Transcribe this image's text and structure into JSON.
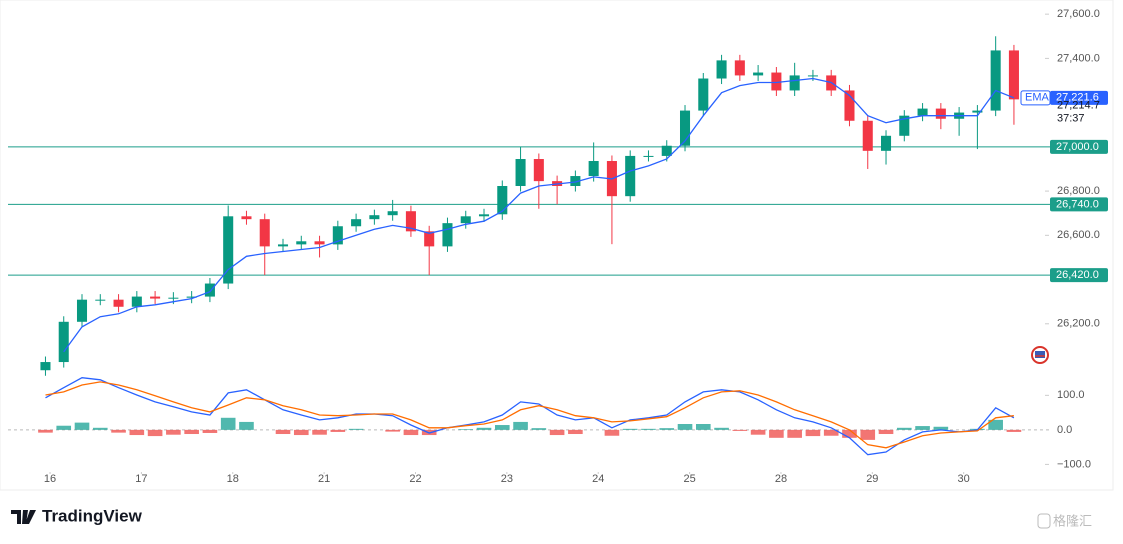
{
  "chart_data": [
    {
      "type": "candlestick",
      "x": [
        -0.05,
        0.15,
        0.35,
        0.55,
        0.75,
        0.95,
        1.15,
        1.35,
        1.55,
        1.75,
        1.95,
        2.15,
        2.35,
        2.55,
        2.75,
        2.95,
        3.15,
        3.35,
        3.55,
        3.75,
        3.95,
        4.15,
        4.35,
        4.55,
        4.75,
        4.95,
        5.15,
        5.35,
        5.55,
        5.75,
        5.95,
        6.15,
        6.35,
        6.55,
        6.75,
        6.95,
        7.15,
        7.35,
        7.55,
        7.75,
        7.95,
        8.15,
        8.35,
        8.55,
        8.75,
        8.95,
        9.15,
        9.35,
        9.55,
        9.75,
        9.95,
        10.15,
        10.35,
        10.55
      ],
      "open": [
        25990,
        26027,
        26209,
        26309,
        26309,
        26277,
        26323,
        26314,
        26318,
        26323,
        26382,
        26686,
        26673,
        26550,
        26559,
        26573,
        26559,
        26641,
        26673,
        26691,
        26709,
        26618,
        26550,
        26655,
        26686,
        26695,
        26823,
        26945,
        26845,
        26823,
        26868,
        26936,
        26777,
        26959,
        26959,
        27005,
        27164,
        27309,
        27391,
        27323,
        27336,
        27255,
        27323,
        27323,
        27255,
        27118,
        26982,
        27050,
        27141,
        27173,
        27127,
        27155,
        27164,
        27436
      ],
      "high": [
        26052,
        26234,
        26334,
        26334,
        26334,
        26348,
        26348,
        26343,
        26348,
        26407,
        26735,
        26711,
        26698,
        26584,
        26598,
        26598,
        26666,
        26698,
        26716,
        26760,
        26734,
        26643,
        26680,
        26711,
        26720,
        26848,
        27000,
        26970,
        26870,
        26893,
        27020,
        26961,
        26984,
        26984,
        27030,
        27189,
        27334,
        27416,
        27416,
        27370,
        27361,
        27380,
        27348,
        27348,
        27280,
        27143,
        27075,
        27166,
        27198,
        27198,
        27180,
        27189,
        27500,
        27461
      ],
      "low": [
        25965,
        26002,
        26184,
        26284,
        26252,
        26252,
        26289,
        26289,
        26293,
        26298,
        26357,
        26648,
        26420,
        26525,
        26534,
        26500,
        26534,
        26616,
        26648,
        26666,
        26593,
        26420,
        26525,
        26630,
        26661,
        26670,
        26798,
        26720,
        26740,
        26798,
        26843,
        26560,
        26752,
        26934,
        26934,
        26980,
        27139,
        27284,
        27298,
        27298,
        27230,
        27230,
        27298,
        27230,
        27093,
        26900,
        26920,
        27025,
        27116,
        27080,
        27050,
        26990,
        27139,
        27100
      ],
      "close": [
        26027,
        26209,
        26309,
        26309,
        26277,
        26323,
        26314,
        26318,
        26323,
        26382,
        26686,
        26673,
        26550,
        26559,
        26573,
        26559,
        26641,
        26673,
        26691,
        26709,
        26618,
        26550,
        26655,
        26686,
        26695,
        26823,
        26945,
        26845,
        26823,
        26868,
        26936,
        26777,
        26959,
        26959,
        27005,
        27164,
        27309,
        27391,
        27323,
        27336,
        27255,
        27323,
        27323,
        27255,
        27118,
        26982,
        27050,
        27141,
        27173,
        27127,
        27155,
        27164,
        27436,
        27214.7
      ],
      "up_color": "#089981",
      "down_color": "#f23645",
      "series": [
        {
          "name": "EMA",
          "color": "#2962ff",
          "last_label": "27,221.6",
          "values": [
            null,
            26073,
            26186,
            26232,
            26245,
            26277,
            26286,
            26300,
            26314,
            26345,
            26445,
            26505,
            26518,
            26527,
            26536,
            26545,
            26573,
            26600,
            26627,
            26645,
            26632,
            26609,
            26627,
            26650,
            26664,
            26709,
            26791,
            26823,
            26832,
            26841,
            26864,
            26855,
            26891,
            26914,
            26945,
            27027,
            27141,
            27245,
            27277,
            27291,
            27291,
            27300,
            27309,
            27291,
            27232,
            27141,
            27109,
            27127,
            27141,
            27141,
            27141,
            27141,
            27255,
            27221.6
          ]
        }
      ],
      "hlines": [
        {
          "value": 27000,
          "label": "27,000.0"
        },
        {
          "value": 26740,
          "label": "26,740.0"
        },
        {
          "value": 26420,
          "label": "26,420.0"
        }
      ],
      "hline_color": "#1b9e8a",
      "last_price_label": "27,214.7",
      "countdown": "37:37",
      "xlim": [
        -0.46,
        10.89
      ],
      "ylim": [
        25982,
        27664
      ],
      "yticks": [
        {
          "value": 27600,
          "label": "27,600.0"
        },
        {
          "value": 27400,
          "label": "27,400.0"
        },
        {
          "value": 26800,
          "label": "26,800.0"
        },
        {
          "value": 26600,
          "label": "26,600.0"
        },
        {
          "value": 26200,
          "label": "26,200.0"
        }
      ]
    },
    {
      "type": "macd",
      "x": [
        -0.05,
        0.15,
        0.35,
        0.55,
        0.75,
        0.95,
        1.15,
        1.35,
        1.55,
        1.75,
        1.95,
        2.15,
        2.35,
        2.55,
        2.75,
        2.95,
        3.15,
        3.35,
        3.55,
        3.75,
        3.95,
        4.15,
        4.35,
        4.55,
        4.75,
        4.95,
        5.15,
        5.35,
        5.55,
        5.75,
        5.95,
        6.15,
        6.35,
        6.55,
        6.75,
        6.95,
        7.15,
        7.35,
        7.55,
        7.75,
        7.95,
        8.15,
        8.35,
        8.55,
        8.75,
        8.95,
        9.15,
        9.35,
        9.55,
        9.75,
        9.95,
        10.15,
        10.35,
        10.55
      ],
      "series": [
        {
          "color": "#2962ff",
          "values": [
            93,
            122,
            151,
            145,
            122,
            101,
            81,
            67,
            52,
            43,
            107,
            116,
            87,
            58,
            43,
            29,
            35,
            46,
            46,
            41,
            14,
            -9,
            6,
            14,
            23,
            43,
            81,
            75,
            43,
            29,
            35,
            6,
            29,
            35,
            43,
            81,
            110,
            116,
            110,
            87,
            58,
            35,
            23,
            6,
            -23,
            -72,
            -64,
            -29,
            -6,
            0,
            -6,
            0,
            64,
            35
          ]
        },
        {
          "color": "#ff6d00",
          "values": [
            101,
            110,
            130,
            139,
            130,
            116,
            99,
            81,
            64,
            52,
            72,
            93,
            87,
            70,
            58,
            43,
            41,
            43,
            46,
            46,
            29,
            6,
            6,
            12,
            17,
            29,
            58,
            70,
            58,
            41,
            35,
            23,
            26,
            32,
            38,
            64,
            93,
            110,
            113,
            101,
            81,
            58,
            41,
            23,
            0,
            -43,
            -52,
            -35,
            -17,
            -9,
            -6,
            -3,
            35,
            41
          ]
        }
      ],
      "histogram": {
        "positive_color": "#26a69a",
        "negative_color": "#ef5350",
        "values": [
          -8,
          12,
          21,
          6,
          -8,
          -15,
          -18,
          -14,
          -12,
          -9,
          35,
          23,
          0,
          -12,
          -15,
          -14,
          -6,
          3,
          0,
          -5,
          -15,
          -15,
          0,
          2,
          6,
          14,
          23,
          5,
          -15,
          -12,
          0,
          -17,
          3,
          3,
          5,
          17,
          17,
          6,
          -3,
          -14,
          -23,
          -23,
          -18,
          -17,
          -23,
          -29,
          -12,
          6,
          11,
          9,
          0,
          3,
          29,
          -6
        ]
      },
      "xlim": [
        -0.46,
        10.89
      ],
      "ylim": [
        -122,
        156
      ],
      "yticks": [
        {
          "value": 100,
          "label": "100.0"
        },
        {
          "value": 0,
          "label": "0.0"
        },
        {
          "value": -100,
          "label": "−100.0"
        }
      ],
      "xticks": [
        {
          "value": 0,
          "label": "16"
        },
        {
          "value": 1,
          "label": "17"
        },
        {
          "value": 2,
          "label": "18"
        },
        {
          "value": 3,
          "label": "21"
        },
        {
          "value": 4,
          "label": "22"
        },
        {
          "value": 5,
          "label": "23"
        },
        {
          "value": 6,
          "label": "24"
        },
        {
          "value": 7,
          "label": "25"
        },
        {
          "value": 8,
          "label": "28"
        },
        {
          "value": 9,
          "label": "29"
        },
        {
          "value": 10,
          "label": "30"
        }
      ]
    }
  ],
  "brand": "TradingView",
  "watermark": "格隆汇"
}
